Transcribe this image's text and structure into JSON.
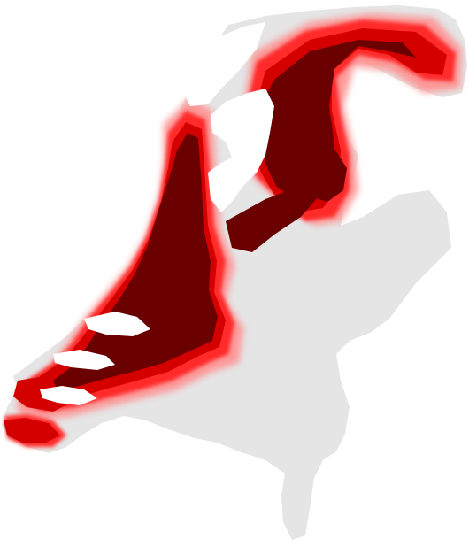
{
  "map": {
    "type": "choropleth-raster",
    "region": "Netherlands",
    "colors": {
      "background": "#ffffff",
      "land_unaffected": "#e5e5e5",
      "water": "#ffffff",
      "flood_deep": "#6b0000",
      "flood_high": "#9e0000",
      "flood_medium": "#d40000",
      "flood_low": "#ff2a2a",
      "flood_fringe": "#ff8f8f"
    },
    "visible_labels": []
  }
}
